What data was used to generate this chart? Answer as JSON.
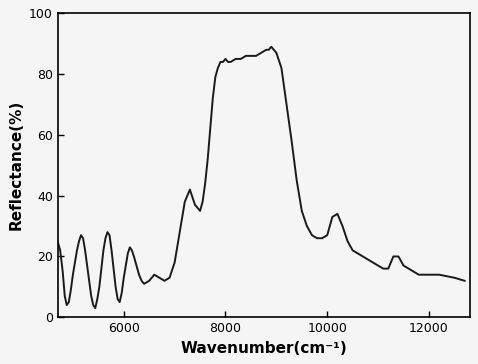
{
  "title": "",
  "xlabel": "Wavenumber(cm⁻¹)",
  "ylabel": "Reflectance(%)",
  "xlim": [
    4700,
    12800
  ],
  "ylim": [
    0,
    100
  ],
  "xticks": [
    6000,
    8000,
    10000,
    12000
  ],
  "yticks": [
    0,
    20,
    40,
    60,
    80,
    100
  ],
  "line_color": "#1a1a1a",
  "line_width": 1.4,
  "background_color": "#f5f5f5",
  "x": [
    4700,
    4750,
    4800,
    4840,
    4880,
    4920,
    4960,
    5000,
    5040,
    5080,
    5120,
    5160,
    5200,
    5240,
    5280,
    5320,
    5360,
    5400,
    5440,
    5480,
    5520,
    5560,
    5600,
    5640,
    5680,
    5720,
    5760,
    5800,
    5840,
    5880,
    5920,
    5960,
    6000,
    6040,
    6080,
    6120,
    6160,
    6200,
    6250,
    6300,
    6350,
    6400,
    6500,
    6600,
    6700,
    6800,
    6900,
    7000,
    7100,
    7200,
    7250,
    7300,
    7400,
    7500,
    7550,
    7600,
    7650,
    7700,
    7750,
    7800,
    7850,
    7900,
    7950,
    8000,
    8050,
    8100,
    8200,
    8300,
    8400,
    8500,
    8600,
    8700,
    8800,
    8850,
    8900,
    8950,
    9000,
    9100,
    9200,
    9300,
    9400,
    9500,
    9600,
    9700,
    9800,
    9900,
    10000,
    10100,
    10200,
    10300,
    10400,
    10500,
    10600,
    10700,
    10800,
    10900,
    11000,
    11100,
    11200,
    11300,
    11400,
    11500,
    11600,
    11700,
    11800,
    11900,
    12000,
    12200,
    12500,
    12700
  ],
  "y": [
    25,
    22,
    15,
    7,
    4,
    5,
    9,
    14,
    18,
    22,
    25,
    27,
    26,
    22,
    17,
    12,
    7,
    4,
    3,
    6,
    10,
    16,
    22,
    26,
    28,
    27,
    22,
    16,
    10,
    6,
    5,
    8,
    13,
    17,
    21,
    23,
    22,
    20,
    17,
    14,
    12,
    11,
    12,
    14,
    13,
    12,
    13,
    18,
    28,
    38,
    40,
    42,
    37,
    35,
    38,
    44,
    52,
    62,
    72,
    79,
    82,
    84,
    84,
    85,
    84,
    84,
    85,
    85,
    86,
    86,
    86,
    87,
    88,
    88,
    89,
    88,
    87,
    82,
    70,
    58,
    45,
    35,
    30,
    27,
    26,
    26,
    27,
    33,
    34,
    30,
    25,
    22,
    21,
    20,
    19,
    18,
    17,
    16,
    16,
    20,
    20,
    17,
    16,
    15,
    14,
    14,
    14,
    14,
    13,
    12
  ]
}
